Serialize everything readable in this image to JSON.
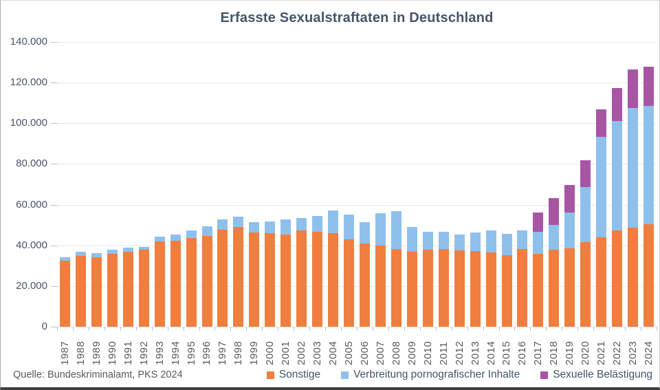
{
  "title": "Erfasste Sexualstraftaten in Deutschland",
  "source": "Quelle: Bundeskriminalamt, PKS 2024",
  "colors": {
    "sonstige": "#F07E3E",
    "verbreitung": "#8FC0EC",
    "belaestigung": "#A855A3",
    "title_text": "#44546A",
    "axis_text": "#44546A",
    "x_label_text": "#595959",
    "grid": "#E9E9E9",
    "tick": "#BFBFBF"
  },
  "chart_data": {
    "type": "bar",
    "stacked": true,
    "title": "Erfasste Sexualstraftaten in Deutschland",
    "xlabel": "",
    "ylabel": "",
    "ylim": [
      0,
      140000
    ],
    "ytick_step": 20000,
    "ytick_labels": [
      "0",
      "20.000",
      "40.000",
      "60.000",
      "80.000",
      "100.000",
      "120.000",
      "140.000"
    ],
    "grid": true,
    "legend_position": "bottom-right",
    "categories": [
      "1987",
      "1988",
      "1989",
      "1990",
      "1991",
      "1992",
      "1993",
      "1994",
      "1995",
      "1996",
      "1997",
      "1998",
      "1999",
      "2000",
      "2001",
      "2002",
      "2003",
      "2004",
      "2005",
      "2006",
      "2007",
      "2008",
      "2009",
      "2010",
      "2011",
      "2012",
      "2013",
      "2014",
      "2015",
      "2016",
      "2017",
      "2018",
      "2019",
      "2020",
      "2021",
      "2022",
      "2023",
      "2024"
    ],
    "series": [
      {
        "name": "Sonstige",
        "color": "#F07E3E",
        "values": [
          32400,
          35000,
          34100,
          35800,
          36800,
          37800,
          42000,
          42200,
          43500,
          44800,
          47800,
          49000,
          46300,
          45900,
          45300,
          47300,
          46800,
          45900,
          43100,
          40800,
          39800,
          38200,
          36900,
          38000,
          38300,
          37700,
          37100,
          36500,
          35300,
          38200,
          36000,
          38000,
          38600,
          41600,
          44000,
          47300,
          48700,
          50400
        ]
      },
      {
        "name": "Verbreitung pornografischer Inhalte",
        "color": "#8FC0EC",
        "values": [
          1900,
          2000,
          2000,
          2000,
          2000,
          1500,
          2400,
          3100,
          3800,
          4500,
          5100,
          5000,
          5200,
          6000,
          7400,
          6200,
          7800,
          11300,
          12100,
          10700,
          16000,
          18600,
          12100,
          8700,
          8400,
          7600,
          9400,
          10800,
          10400,
          9100,
          10700,
          12200,
          17700,
          26900,
          49300,
          53700,
          58900,
          58200
        ]
      },
      {
        "name": "Sexuelle Belästigung",
        "color": "#A855A3",
        "values": [
          0,
          0,
          0,
          0,
          0,
          0,
          0,
          0,
          0,
          0,
          0,
          0,
          0,
          0,
          0,
          0,
          0,
          0,
          0,
          0,
          0,
          0,
          0,
          0,
          0,
          0,
          0,
          0,
          0,
          0,
          9600,
          13200,
          13500,
          13500,
          13500,
          16500,
          18900,
          19200
        ]
      }
    ]
  }
}
